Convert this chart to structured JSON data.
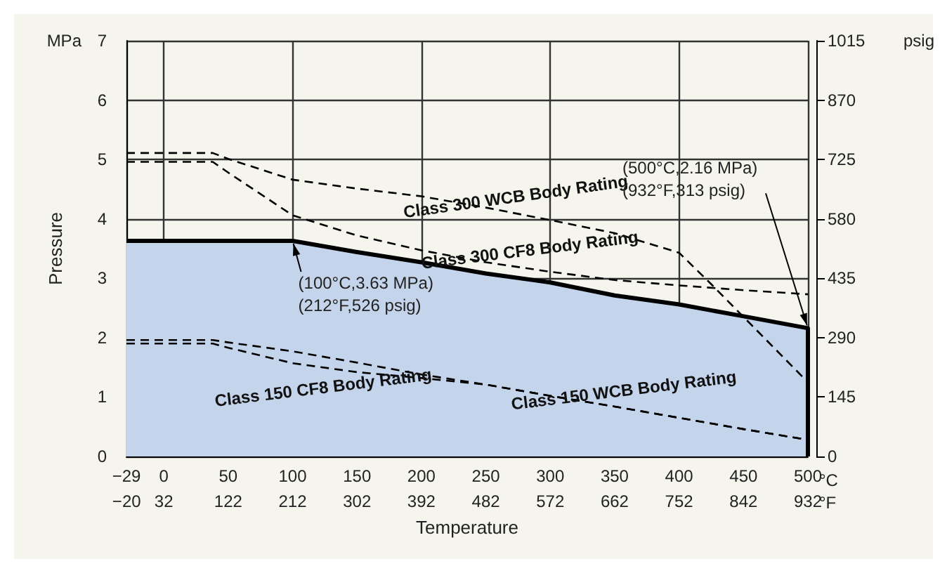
{
  "chart_data": {
    "type": "line",
    "xlabel": "Temperature",
    "ylabel": "Pressure",
    "xlim": [
      -29,
      500
    ],
    "xticks": [
      {
        "value": -29,
        "label": "−29"
      },
      0,
      50,
      100,
      150,
      200,
      250,
      300,
      350,
      400,
      450,
      500
    ],
    "x2lim": [
      -20.2,
      932
    ],
    "x2ticks": [
      {
        "value": -20,
        "label": "−20"
      },
      32,
      122,
      212,
      302,
      392,
      482,
      572,
      662,
      752,
      842,
      932
    ],
    "ylim": [
      0,
      7
    ],
    "yticks": [
      0,
      1,
      2,
      3,
      4,
      5,
      6,
      7
    ],
    "y2lim": [
      0,
      1015
    ],
    "y2ticks": [
      0,
      145,
      290,
      435,
      580,
      725,
      870,
      1015
    ],
    "grid": true,
    "marker": "none",
    "series": [
      {
        "type": "area",
        "color": "#c4d4eb",
        "x": [
          -29,
          100,
          150,
          200,
          250,
          300,
          350,
          400,
          450,
          500,
          500
        ],
        "values": [
          3.63,
          3.63,
          3.44,
          3.27,
          3.08,
          2.93,
          2.71,
          2.56,
          2.36,
          2.16,
          0
        ],
        "line_style": "solid"
      },
      {
        "color": "#000000",
        "line_style": "dashed",
        "x": [
          -29,
          38,
          50,
          100,
          150,
          200,
          250,
          300,
          350,
          400,
          425,
          450,
          475,
          500
        ],
        "values": [
          5.11,
          5.11,
          5.01,
          4.66,
          4.51,
          4.38,
          4.19,
          3.98,
          3.76,
          3.43,
          2.9,
          2.35,
          1.8,
          1.25
        ]
      },
      {
        "color": "#000000",
        "line_style": "dashed",
        "x": [
          -29,
          38,
          50,
          100,
          150,
          200,
          250,
          300,
          350,
          400,
          450,
          500
        ],
        "values": [
          4.96,
          4.96,
          4.78,
          4.06,
          3.72,
          3.47,
          3.27,
          3.11,
          2.97,
          2.88,
          2.8,
          2.73
        ]
      },
      {
        "color": "#000000",
        "line_style": "dashed",
        "x": [
          -29,
          38,
          50,
          100,
          150,
          200,
          250,
          300,
          350,
          400,
          450,
          500
        ],
        "values": [
          1.96,
          1.96,
          1.92,
          1.77,
          1.58,
          1.38,
          1.21,
          1.02,
          0.84,
          0.65,
          0.46,
          0.28
        ]
      },
      {
        "color": "#000000",
        "line_style": "dashed",
        "x": [
          -29,
          38,
          50,
          100,
          150,
          200,
          250,
          300,
          350,
          400,
          450,
          500
        ],
        "values": [
          1.9,
          1.9,
          1.83,
          1.57,
          1.42,
          1.32,
          1.21,
          1.02,
          0.84,
          0.65,
          0.46,
          0.28
        ]
      }
    ],
    "annotations": [
      "MPa",
      "psig",
      "°C",
      "°F",
      "Class 300 WCB Body Rating",
      "Class 300 CF8 Body Rating",
      "Class 150 CF8 Body Rating",
      "Class 150 WCB Body Rating",
      {
        "text": "(100°C,3.63 MPa)\n(212°F,526 psig)",
        "x": 100,
        "y": 3.63
      },
      {
        "text": "(500°C,2.16 MPa)\n(932°F,313 psig)",
        "x": 500,
        "y": 2.16
      }
    ]
  }
}
